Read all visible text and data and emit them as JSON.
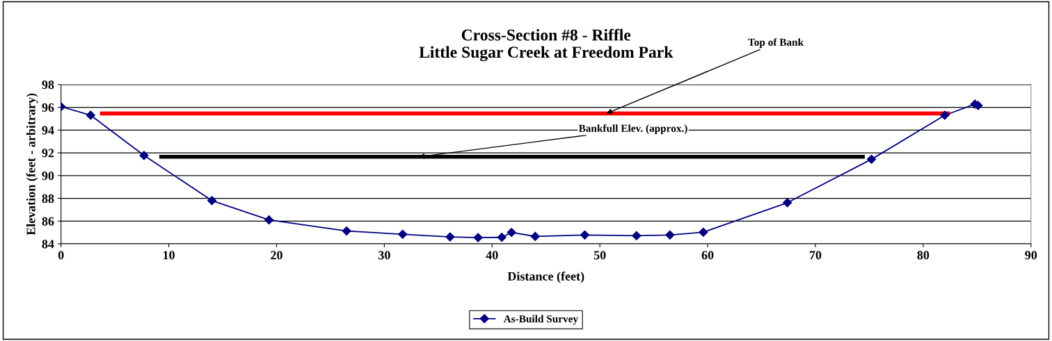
{
  "chart_data": {
    "type": "line",
    "title": "Cross-Section #8 - Riffle\nLittle Sugar Creek at Freedom Park",
    "xlabel": "Distance (feet)",
    "ylabel": "Elevation (feet - arbitrary)",
    "series": [
      {
        "name": "As-Build Survey",
        "color": "#000080",
        "marker": "diamond",
        "x": [
          0,
          2.75,
          7.7,
          14.0,
          19.3,
          26.5,
          31.7,
          36.1,
          38.7,
          40.9,
          41.8,
          44.0,
          48.6,
          53.4,
          56.5,
          59.6,
          67.4,
          75.2,
          82.0,
          84.8,
          85.1
        ],
        "values": [
          96.06,
          95.3,
          91.77,
          87.8,
          86.1,
          85.13,
          84.84,
          84.61,
          84.55,
          84.57,
          85.0,
          84.65,
          84.78,
          84.71,
          84.78,
          85.02,
          87.62,
          91.43,
          95.3,
          96.28,
          96.16
        ]
      },
      {
        "color": "#ff0000",
        "marker": "none",
        "x": [
          3.8,
          82.3
        ],
        "values": [
          95.46,
          95.46
        ]
      },
      {
        "color": "#000000",
        "marker": "none",
        "x": [
          9.3,
          74.4
        ],
        "values": [
          91.65,
          91.65
        ]
      }
    ],
    "annotations": [
      {
        "text": "Top of Bank",
        "x": 50.6,
        "y": 95.46
      },
      {
        "text": "Bankfull Elev. (approx.)",
        "x": 33.2,
        "y": 91.65
      }
    ],
    "xlim": [
      0,
      90
    ],
    "xticks": [
      0,
      10,
      20,
      30,
      40,
      50,
      60,
      70,
      80,
      90
    ],
    "ylim": [
      84,
      98
    ],
    "yticks": [
      84,
      86,
      88,
      90,
      92,
      94,
      96,
      98
    ],
    "grid": "y",
    "legend": "bottom"
  }
}
